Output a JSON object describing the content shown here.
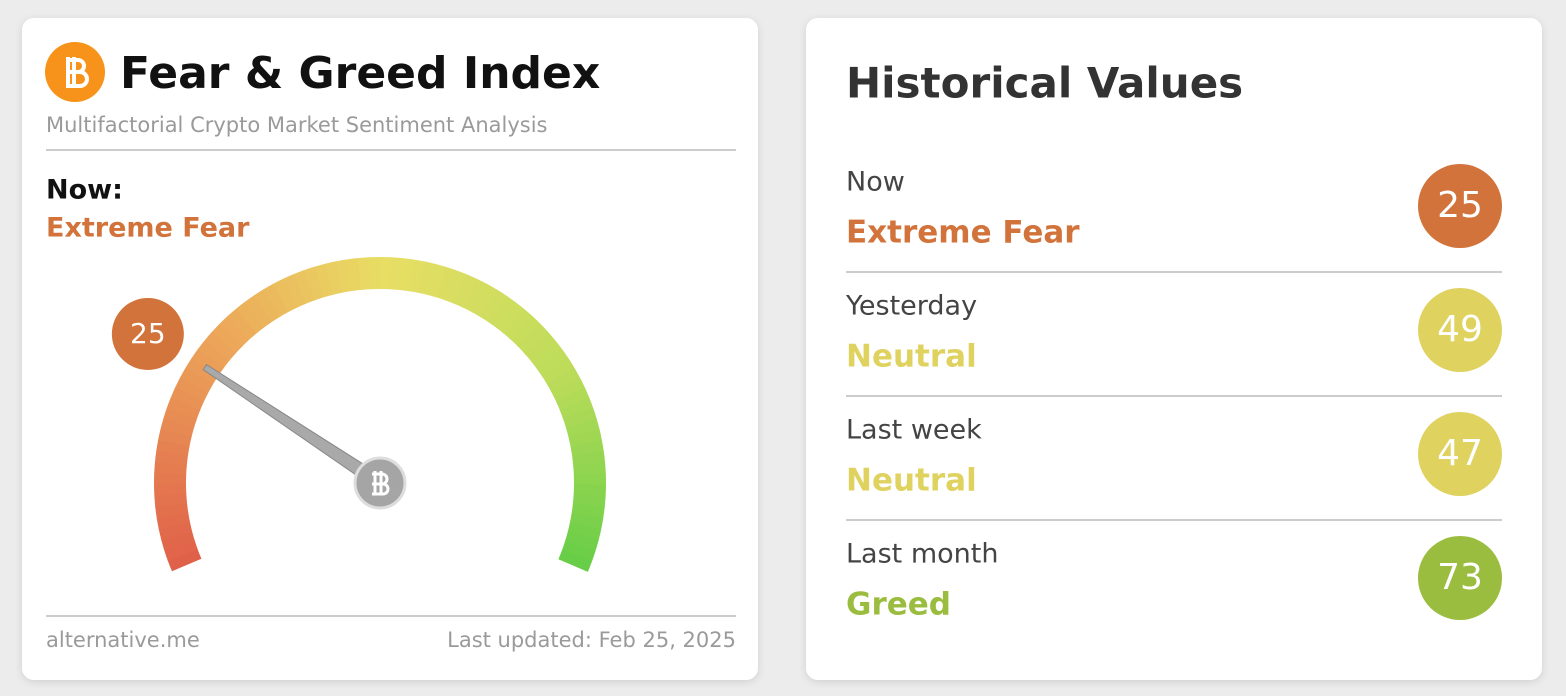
{
  "gauge_card": {
    "title": "Fear & Greed Index",
    "subtitle": "Multifactorial Crypto Market Sentiment Analysis",
    "now_label": "Now:",
    "classification": "Extreme Fear",
    "color": "#d1733a",
    "value": 25,
    "range": [
      0,
      100
    ],
    "source": "alternative.me",
    "last_updated": "Last updated: Feb 25, 2025"
  },
  "history": {
    "title": "Historical Values",
    "rows": [
      {
        "period": "Now",
        "classification": "Extreme Fear",
        "value": 25,
        "color": "#d1733a"
      },
      {
        "period": "Yesterday",
        "classification": "Neutral",
        "value": 49,
        "color": "#dfd25f"
      },
      {
        "period": "Last week",
        "classification": "Neutral",
        "value": 47,
        "color": "#dfd25f"
      },
      {
        "period": "Last month",
        "classification": "Greed",
        "value": 73,
        "color": "#9bbd3f"
      }
    ]
  }
}
